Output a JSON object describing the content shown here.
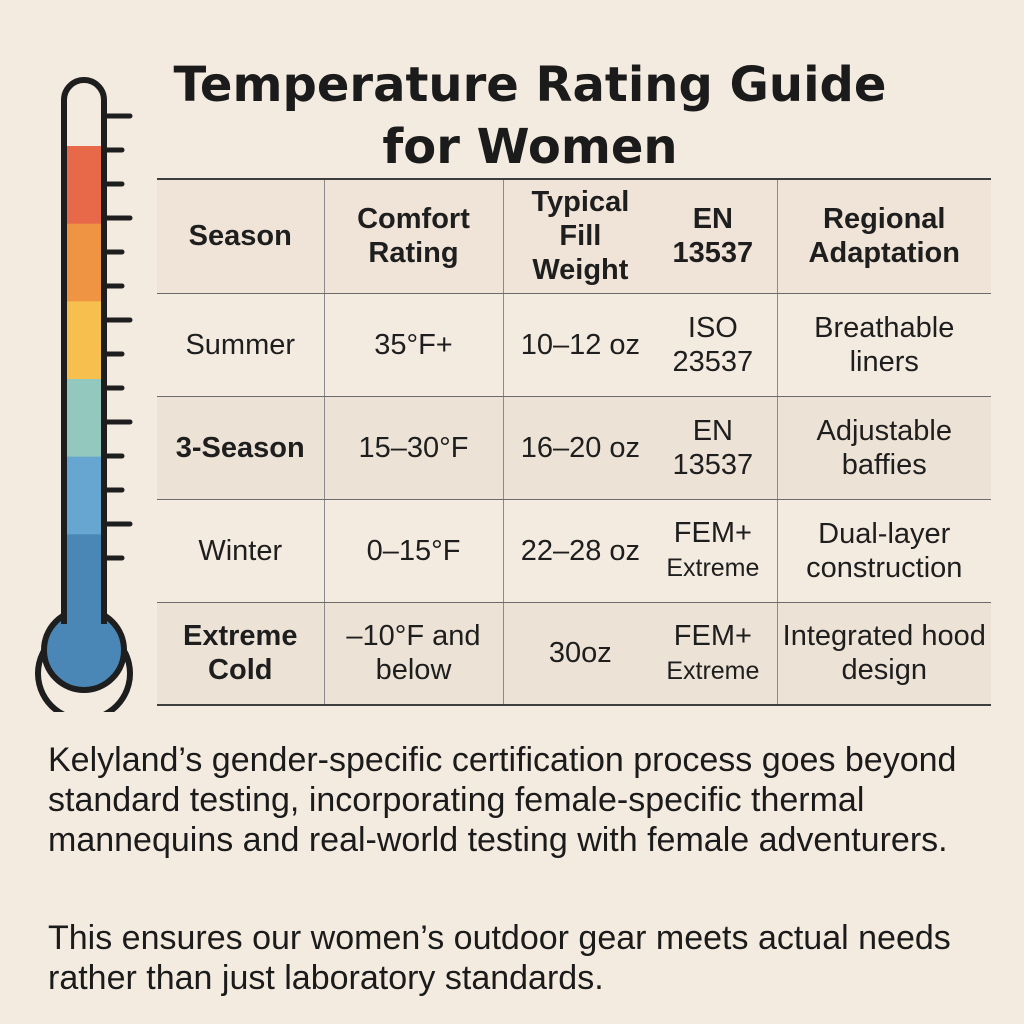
{
  "title": {
    "line1": "Temperature Rating Guide",
    "line2": "for Women"
  },
  "thermometer": {
    "icon": "thermometer-icon",
    "bands": [
      "#e8684a",
      "#ef9442",
      "#f7c04e",
      "#92c8bd",
      "#66a6d0",
      "#4a86b6"
    ]
  },
  "table": {
    "headers": {
      "season": "Season",
      "comfort": "Comfort Rating",
      "fill": "Typical Fill Weight",
      "standard": "EN 13537",
      "regional": "Regional Adaptation"
    },
    "rows": [
      {
        "season": "Summer",
        "comfort": "35°F+",
        "fill": "10–12 oz",
        "standard": "ISO 23537",
        "regional": "Breathable liners"
      },
      {
        "season": "3-Season",
        "comfort": "15–30°F",
        "fill": "16–20 oz",
        "standard": "EN 13537",
        "regional": "Adjustable baffies"
      },
      {
        "season": "Winter",
        "comfort": "0–15°F",
        "fill": "22–28 oz",
        "standard_main": "FEM+",
        "standard_sub": "Extreme",
        "regional": "Dual-layer construction"
      },
      {
        "season": "Extreme Cold",
        "comfort": "–10°F and below",
        "fill": "30oz",
        "standard_main": "FEM+",
        "standard_sub": "Extreme",
        "regional": "Integrated hood design"
      }
    ]
  },
  "paragraphs": [
    "Kelyland’s gender-specific certification process goes beyond standard testing, incorporating female-specific thermal mannequins and real-world testing with female adventurers.",
    "This ensures our women’s outdoor gear meets actual needs rather than just laboratory standards."
  ]
}
